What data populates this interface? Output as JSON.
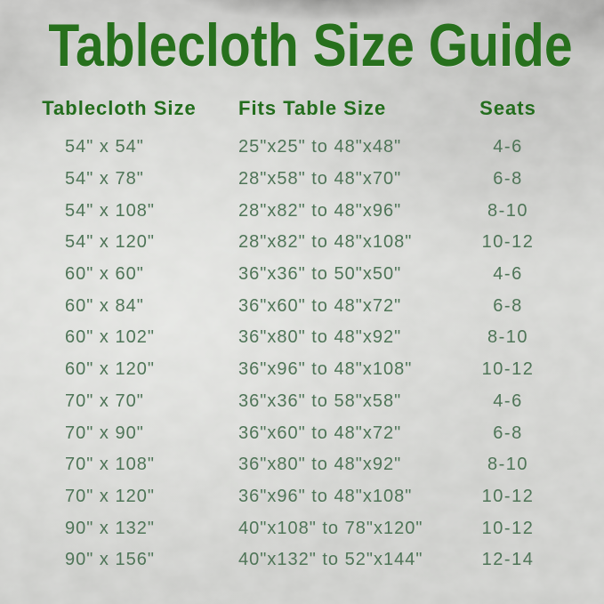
{
  "title": "Tablecloth Size Guide",
  "table": {
    "headers": [
      "Tablecloth Size",
      "Fits Table Size",
      "Seats"
    ],
    "rows": [
      [
        "54\" x 54\"",
        "25\"x25\" to 48\"x48\"",
        "4-6"
      ],
      [
        "54\" x 78\"",
        "28\"x58\" to 48\"x70\"",
        "6-8"
      ],
      [
        "54\" x 108\"",
        "28\"x82\" to 48\"x96\"",
        "8-10"
      ],
      [
        "54\" x 120\"",
        "28\"x82\" to 48\"x108\"",
        "10-12"
      ],
      [
        "60\" x 60\"",
        "36\"x36\" to 50\"x50\"",
        "4-6"
      ],
      [
        "60\" x 84\"",
        "36\"x60\" to 48\"x72\"",
        "6-8"
      ],
      [
        "60\" x 102\"",
        "36\"x80\" to 48\"x92\"",
        "8-10"
      ],
      [
        "60\" x 120\"",
        "36\"x96\" to 48\"x108\"",
        "10-12"
      ],
      [
        "70\" x 70\"",
        "36\"x36\" to 58\"x58\"",
        "4-6"
      ],
      [
        "70\" x 90\"",
        "36\"x60\" to 48\"x72\"",
        "6-8"
      ],
      [
        "70\" x 108\"",
        "36\"x80\" to 48\"x92\"",
        "8-10"
      ],
      [
        "70\" x 120\"",
        "36\"x96\" to 48\"x108\"",
        "10-12"
      ],
      [
        "90\" x 132\"",
        "40\"x108\" to 78\"x120\"",
        "10-12"
      ],
      [
        "90\" x 156\"",
        "40\"x132\" to 52\"x144\"",
        "12-14"
      ]
    ]
  },
  "colors": {
    "title_green": "#27701d",
    "header_green": "#236d1d",
    "row_text_green": "#4e7457",
    "background_silver": "#cdcecb"
  }
}
